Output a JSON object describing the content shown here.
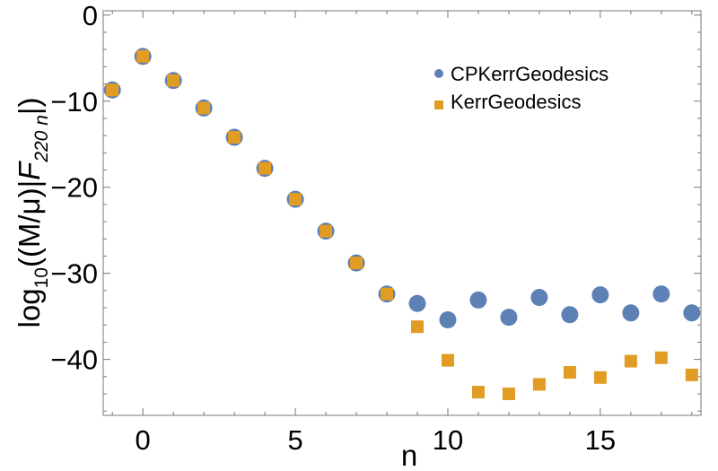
{
  "chart_data": {
    "type": "scatter",
    "title": "",
    "xlabel": "n",
    "ylabel_parts": {
      "prefix": "log",
      "sub1": "10",
      "mid": "((M/μ)|",
      "F": "F",
      "sub2": "220 n",
      "suffix": "|)"
    },
    "xlim": [
      -1.3,
      18.3
    ],
    "ylim": [
      -46.5,
      0.5
    ],
    "xticks": [
      0,
      5,
      10,
      15
    ],
    "xtick_labels": [
      "0",
      "5",
      "10",
      "15"
    ],
    "yticks": [
      0,
      -10,
      -20,
      -30,
      -40
    ],
    "ytick_labels": [
      "0",
      "−10",
      "−20",
      "−30",
      "−40"
    ],
    "legend_position": "top-right",
    "grid": false,
    "series": [
      {
        "name": "CPKerrGeodesics",
        "marker": "circle",
        "color": "#5e81b5",
        "x": [
          -1,
          0,
          1,
          2,
          3,
          4,
          5,
          6,
          7,
          8,
          9,
          10,
          11,
          12,
          13,
          14,
          15,
          16,
          17,
          18
        ],
        "y": [
          -8.7,
          -4.8,
          -7.6,
          -10.8,
          -14.2,
          -17.8,
          -21.4,
          -25.1,
          -28.8,
          -32.4,
          -33.5,
          -35.4,
          -33.1,
          -35.1,
          -32.8,
          -34.8,
          -32.5,
          -34.6,
          -32.4,
          -34.6
        ]
      },
      {
        "name": "KerrGeodesics",
        "marker": "square",
        "color": "#e19c24",
        "x": [
          -1,
          0,
          1,
          2,
          3,
          4,
          5,
          6,
          7,
          8,
          9,
          10,
          11,
          12,
          13,
          14,
          15,
          16,
          17,
          18
        ],
        "y": [
          -8.7,
          -4.8,
          -7.6,
          -10.8,
          -14.2,
          -17.8,
          -21.4,
          -25.1,
          -28.8,
          -32.4,
          -36.2,
          -40.1,
          -43.8,
          -44.0,
          -42.9,
          -41.5,
          -42.1,
          -40.2,
          -39.8,
          -41.8
        ]
      }
    ]
  }
}
